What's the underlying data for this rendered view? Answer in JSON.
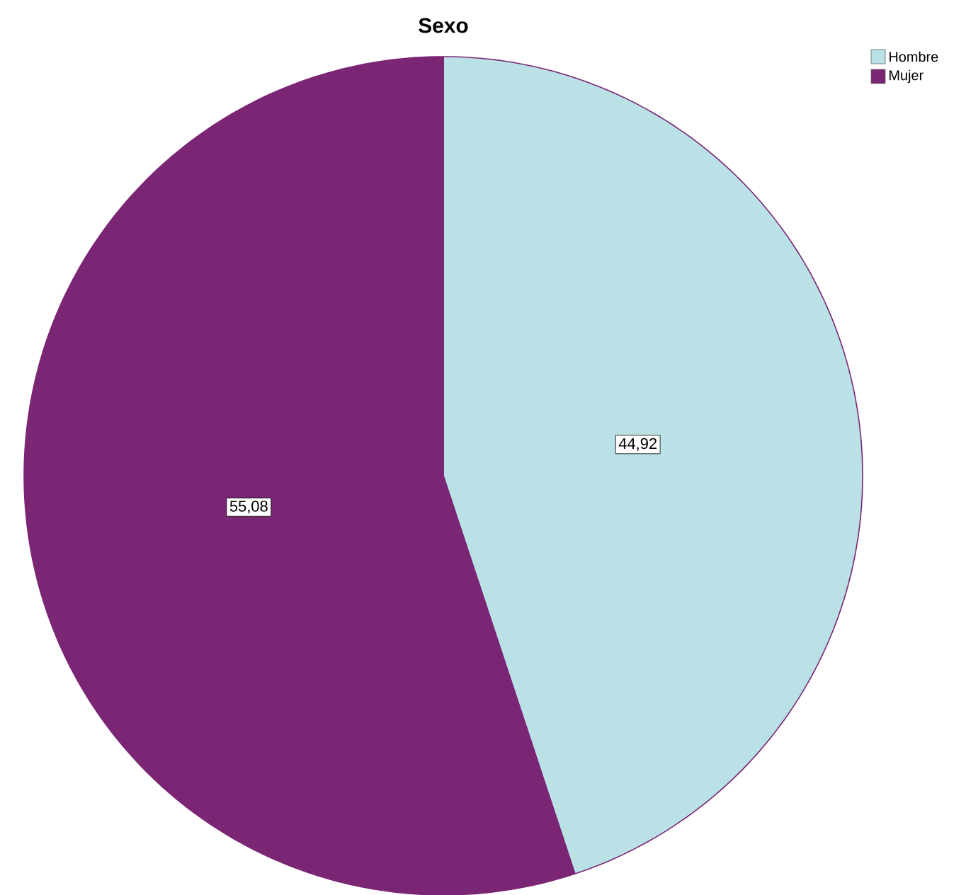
{
  "chart_data": {
    "type": "pie",
    "title": "Sexo",
    "categories": [
      "Hombre",
      "Mujer"
    ],
    "values": [
      44.92,
      55.08
    ],
    "colors": [
      "#b9e1e6",
      "#7b2675"
    ],
    "value_labels": [
      "44,92",
      "55,08"
    ],
    "legend": "top right"
  }
}
